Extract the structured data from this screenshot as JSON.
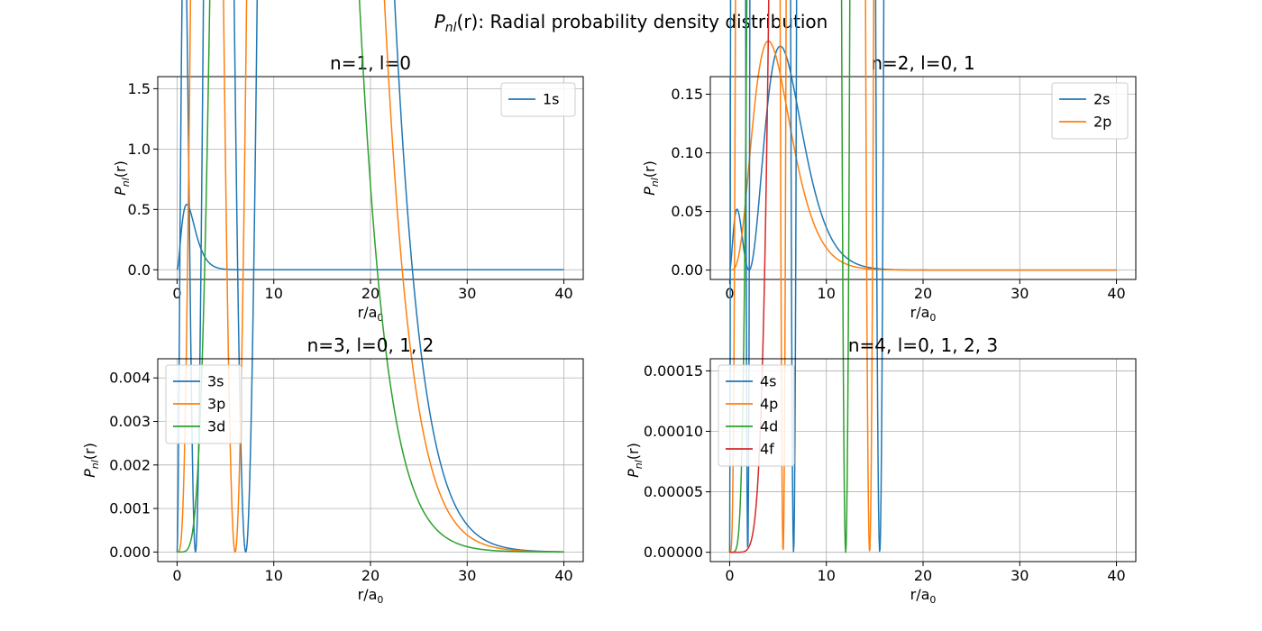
{
  "figure": {
    "title_prefix": "P",
    "title_sub": "nl",
    "title_suffix": "(r): Radial probability density distribution"
  },
  "chart_data": [
    {
      "type": "line",
      "title": "n=1, l=0",
      "xlabel_main": "r/a",
      "xlabel_sub": "0",
      "ylabel_main": "P",
      "ylabel_sub": "nl",
      "ylabel_suffix": "(r)",
      "xlim": [
        -2,
        42
      ],
      "ylim": [
        -0.08,
        1.6
      ],
      "xticks": [
        0,
        10,
        20,
        30,
        40
      ],
      "xtick_labels": [
        "0",
        "10",
        "20",
        "30",
        "40"
      ],
      "yticks": [
        0,
        0.5,
        1.0,
        1.5
      ],
      "ytick_labels": [
        "0.0",
        "0.5",
        "1.0",
        "1.5"
      ],
      "grid": true,
      "legend": "top-right",
      "series": [
        {
          "name": "1s",
          "n": 1,
          "l": 0,
          "color": "#1f77b4"
        }
      ]
    },
    {
      "type": "line",
      "title": "n=2, l=0, 1",
      "xlabel_main": "r/a",
      "xlabel_sub": "0",
      "ylabel_main": "P",
      "ylabel_sub": "nl",
      "ylabel_suffix": "(r)",
      "xlim": [
        -2,
        42
      ],
      "ylim": [
        -0.008,
        0.165
      ],
      "xticks": [
        0,
        10,
        20,
        30,
        40
      ],
      "xtick_labels": [
        "0",
        "10",
        "20",
        "30",
        "40"
      ],
      "yticks": [
        0,
        0.05,
        0.1,
        0.15
      ],
      "ytick_labels": [
        "0.00",
        "0.05",
        "0.10",
        "0.15"
      ],
      "grid": true,
      "legend": "top-right",
      "series": [
        {
          "name": "2s",
          "n": 2,
          "l": 0,
          "color": "#1f77b4"
        },
        {
          "name": "2p",
          "n": 2,
          "l": 1,
          "color": "#ff7f0e"
        }
      ]
    },
    {
      "type": "line",
      "title": "n=3, l=0, 1, 2",
      "xlabel_main": "r/a",
      "xlabel_sub": "0",
      "ylabel_main": "P",
      "ylabel_sub": "nl",
      "ylabel_suffix": "(r)",
      "xlim": [
        -2,
        42
      ],
      "ylim": [
        -0.00022,
        0.00444
      ],
      "xticks": [
        0,
        10,
        20,
        30,
        40
      ],
      "xtick_labels": [
        "0",
        "10",
        "20",
        "30",
        "40"
      ],
      "yticks": [
        0,
        0.001,
        0.002,
        0.003,
        0.004
      ],
      "ytick_labels": [
        "0.000",
        "0.001",
        "0.002",
        "0.003",
        "0.004"
      ],
      "grid": true,
      "legend": "top-left",
      "series": [
        {
          "name": "3s",
          "n": 3,
          "l": 0,
          "color": "#1f77b4"
        },
        {
          "name": "3p",
          "n": 3,
          "l": 1,
          "color": "#ff7f0e"
        },
        {
          "name": "3d",
          "n": 3,
          "l": 2,
          "color": "#2ca02c"
        }
      ]
    },
    {
      "type": "line",
      "title": "n=4, l=0, 1, 2, 3",
      "xlabel_main": "r/a",
      "xlabel_sub": "0",
      "ylabel_main": "P",
      "ylabel_sub": "nl",
      "ylabel_suffix": "(r)",
      "xlim": [
        -2,
        42
      ],
      "ylim": [
        -7.7e-06,
        0.00016
      ],
      "xticks": [
        0,
        10,
        20,
        30,
        40
      ],
      "xtick_labels": [
        "0",
        "10",
        "20",
        "30",
        "40"
      ],
      "yticks": [
        0,
        5e-05,
        0.0001,
        0.00015
      ],
      "ytick_labels": [
        "0.00000",
        "0.00005",
        "0.00010",
        "0.00015"
      ],
      "grid": true,
      "legend": "top-left",
      "series": [
        {
          "name": "4s",
          "n": 4,
          "l": 0,
          "color": "#1f77b4"
        },
        {
          "name": "4p",
          "n": 4,
          "l": 1,
          "color": "#ff7f0e"
        },
        {
          "name": "4d",
          "n": 4,
          "l": 2,
          "color": "#2ca02c"
        },
        {
          "name": "4f",
          "n": 4,
          "l": 3,
          "color": "#d62728"
        }
      ]
    }
  ]
}
